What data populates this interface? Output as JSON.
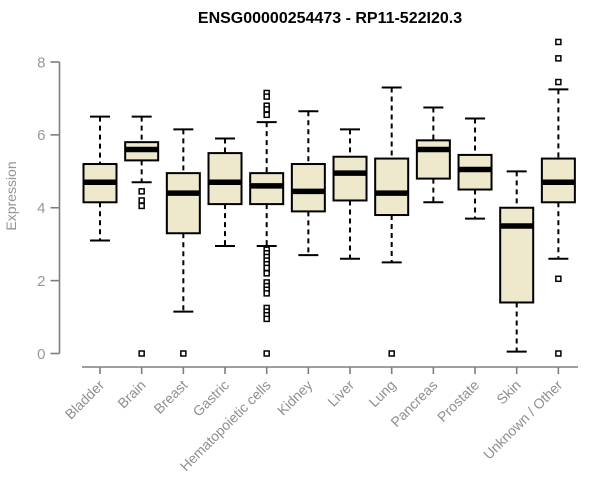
{
  "chart_data": {
    "type": "boxplot",
    "title": "ENSG00000254473 - RP11-522I20.3",
    "ylabel": "Expression",
    "xlabel": "",
    "ylim": [
      0,
      8
    ],
    "yticks": [
      0,
      2,
      4,
      6,
      8
    ],
    "grid": false,
    "legend": "none",
    "box_fill_color": "#EEE8CD",
    "box_line_color": "#000000",
    "axis_line_color": "#7f7f7f",
    "tick_label_color": "#989898",
    "background_color": "#ffffff",
    "categories": [
      "Bladder",
      "Brain",
      "Breast",
      "Gastric",
      "Hematopoietic cells",
      "Kidney",
      "Liver",
      "Lung",
      "Pancreas",
      "Prostate",
      "Skin",
      "Unknown / Other"
    ],
    "boxes": [
      {
        "category": "Bladder",
        "whisker_low": 3.1,
        "q1": 4.15,
        "median": 4.7,
        "q3": 5.2,
        "whisker_high": 6.5,
        "outliers": []
      },
      {
        "category": "Brain",
        "whisker_low": 4.7,
        "q1": 5.3,
        "median": 5.6,
        "q3": 5.8,
        "whisker_high": 6.5,
        "outliers": [
          4.45,
          4.2,
          4.05,
          0
        ]
      },
      {
        "category": "Breast",
        "whisker_low": 1.15,
        "q1": 3.3,
        "median": 4.4,
        "q3": 4.95,
        "whisker_high": 6.15,
        "outliers": [
          0
        ]
      },
      {
        "category": "Gastric",
        "whisker_low": 2.95,
        "q1": 4.1,
        "median": 4.7,
        "q3": 5.5,
        "whisker_high": 5.9,
        "outliers": []
      },
      {
        "category": "Hematopoietic cells",
        "whisker_low": 2.95,
        "q1": 4.1,
        "median": 4.6,
        "q3": 4.95,
        "whisker_high": 6.35,
        "outliers": [
          7.15,
          7.05,
          6.8,
          6.7,
          6.55,
          2.85,
          2.75,
          2.65,
          2.55,
          2.45,
          2.35,
          2.2,
          1.95,
          1.85,
          1.75,
          1.65,
          1.25,
          1.15,
          1.05,
          0.95,
          0
        ]
      },
      {
        "category": "Kidney",
        "whisker_low": 2.7,
        "q1": 3.9,
        "median": 4.45,
        "q3": 5.2,
        "whisker_high": 6.65,
        "outliers": []
      },
      {
        "category": "Liver",
        "whisker_low": 2.6,
        "q1": 4.2,
        "median": 4.95,
        "q3": 5.4,
        "whisker_high": 6.15,
        "outliers": []
      },
      {
        "category": "Lung",
        "whisker_low": 2.5,
        "q1": 3.8,
        "median": 4.4,
        "q3": 5.35,
        "whisker_high": 7.3,
        "outliers": [
          0
        ]
      },
      {
        "category": "Pancreas",
        "whisker_low": 4.15,
        "q1": 4.8,
        "median": 5.6,
        "q3": 5.85,
        "whisker_high": 6.75,
        "outliers": []
      },
      {
        "category": "Prostate",
        "whisker_low": 3.7,
        "q1": 4.5,
        "median": 5.05,
        "q3": 5.45,
        "whisker_high": 6.45,
        "outliers": []
      },
      {
        "category": "Skin",
        "whisker_low": 0.05,
        "q1": 1.4,
        "median": 3.5,
        "q3": 4.0,
        "whisker_high": 5.0,
        "outliers": []
      },
      {
        "category": "Unknown / Other",
        "whisker_low": 2.6,
        "q1": 4.15,
        "median": 4.7,
        "q3": 5.35,
        "whisker_high": 7.25,
        "outliers": [
          8.55,
          8.1,
          7.45,
          2.05,
          0
        ]
      }
    ]
  }
}
